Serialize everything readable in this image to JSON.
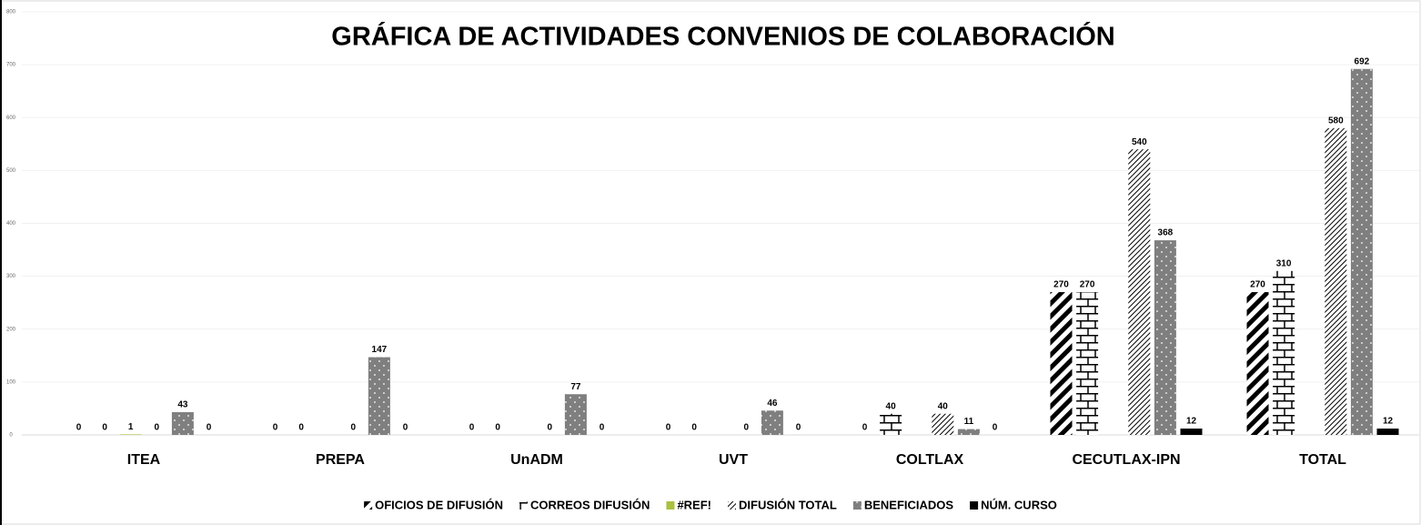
{
  "chart_data": {
    "type": "bar",
    "title": "GRÁFICA DE ACTIVIDADES CONVENIOS DE COLABORACIÓN",
    "categories": [
      "ITEA",
      "PREPA",
      "UnADM",
      "UVT",
      "COLTLAX",
      "CECUTLAX-IPN",
      "TOTAL"
    ],
    "series": [
      {
        "name": "OFICIOS DE DIFUSIÓN",
        "color": "#000000",
        "pattern": "wide-diagonal",
        "values": [
          0,
          0,
          0,
          0,
          0,
          270,
          270
        ]
      },
      {
        "name": "CORREOS DIFUSIÓN",
        "color": "#000000",
        "pattern": "brick",
        "values": [
          0,
          0,
          0,
          0,
          40,
          270,
          310
        ]
      },
      {
        "name": "#REF!",
        "color": "#a9c23f",
        "pattern": "solid",
        "values": [
          1,
          null,
          null,
          null,
          null,
          null,
          null
        ]
      },
      {
        "name": "DIFUSIÓN TOTAL",
        "color": "#000000",
        "pattern": "thin-diagonal",
        "values": [
          0,
          0,
          0,
          0,
          40,
          540,
          580
        ]
      },
      {
        "name": "BENEFICIADOS",
        "color": "#7f7f7f",
        "pattern": "dots",
        "values": [
          43,
          147,
          77,
          46,
          11,
          368,
          692
        ]
      },
      {
        "name": "NÚM. CURSO",
        "color": "#000000",
        "pattern": "solid",
        "values": [
          0,
          0,
          0,
          0,
          0,
          12,
          12
        ]
      }
    ],
    "ylim": [
      0,
      800
    ],
    "yticks": [
      0,
      100,
      200,
      300,
      400,
      500,
      600,
      700,
      800
    ],
    "grid": true,
    "legend": "bottom"
  }
}
